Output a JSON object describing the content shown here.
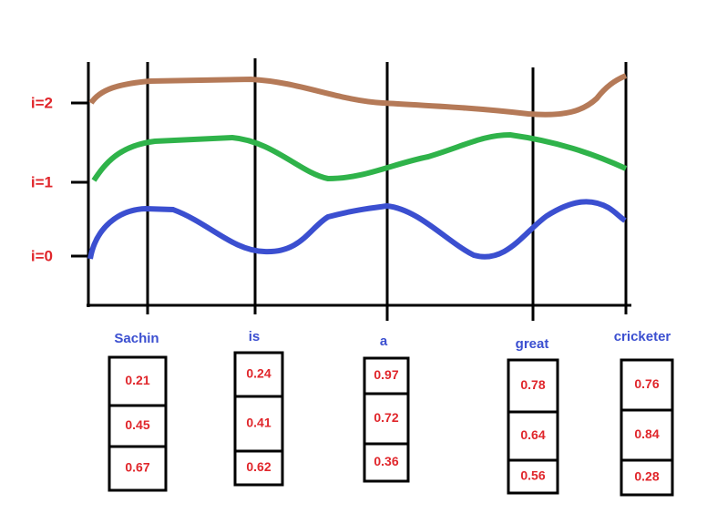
{
  "axis_labels": [
    "i=2",
    "i=1",
    "i=0"
  ],
  "words": [
    {
      "label": "Sachin",
      "values": [
        0.21,
        0.45,
        0.67
      ]
    },
    {
      "label": "is",
      "values": [
        0.24,
        0.41,
        0.62
      ]
    },
    {
      "label": "a",
      "values": [
        0.97,
        0.72,
        0.36
      ]
    },
    {
      "label": "great",
      "values": [
        0.78,
        0.64,
        0.56
      ]
    },
    {
      "label": "cricketer",
      "values": [
        0.76,
        0.84,
        0.28
      ]
    }
  ]
}
